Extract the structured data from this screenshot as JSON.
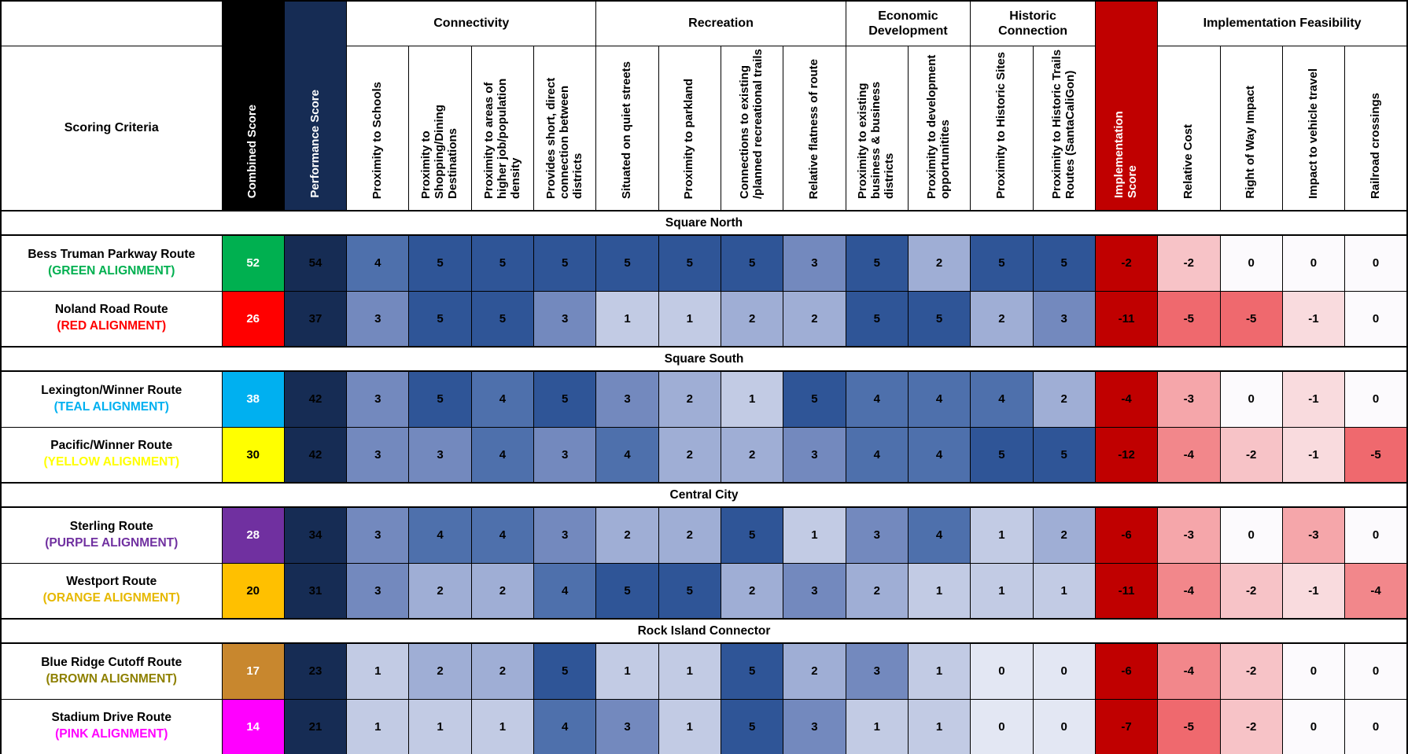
{
  "chart_data": {
    "type": "table",
    "title": "Scoring Criteria",
    "corner_label": "Scoring Criteria",
    "combined_header": "Combined Score",
    "performance_header": "Performance Score",
    "implementation_header": "Implementation Score",
    "groups": [
      {
        "label": "Connectivity",
        "span": 4
      },
      {
        "label": "Recreation",
        "span": 4
      },
      {
        "label": "Economic Development",
        "span": 2
      },
      {
        "label": "Historic Connection",
        "span": 2
      },
      {
        "label": "Implementation Feasibility",
        "span": 4
      }
    ],
    "criteria_headers": [
      "Proximity to Schools",
      "Proximity to Shopping/Dining Destinations",
      "Proximity to areas of higher job/population density",
      "Provides short, direct connection between districts",
      "Situated on quiet streets",
      "Proximity to parkland",
      "Connections to existing /planned recreational trails",
      "Relative flatness of route",
      "Proximity to existing business & business districts",
      "Proximity to development opportunitites",
      "Proximity to Historic Sites",
      "Proximity to Historic Trails Routes (SantaCaliGon)"
    ],
    "feasibility_headers": [
      "Relative Cost",
      "Right of Way Impact",
      "Impact to vehicle travel",
      "Railroad crossings"
    ],
    "colors": {
      "combined_header_bg": "#000000",
      "performance_bg": "#162C54",
      "implementation_bg": "#C00000",
      "score_scale": {
        "0": "#E3E7F3",
        "1": "#C2CBE4",
        "2": "#9FAED5",
        "3": "#7389BE",
        "4": "#4E70AC",
        "5": "#2F5597"
      },
      "feasibility_scale": {
        "0": "#FCFAFD",
        "-1": "#F9DBDE",
        "-2": "#F7C3C7",
        "-3": "#F5A6AA",
        "-4": "#F2878B",
        "-5": "#EF696E"
      }
    },
    "sections": [
      {
        "title": "Square North",
        "rows": [
          {
            "name": "Bess Truman Parkway Route",
            "alignment": "(GREEN ALIGNMENT)",
            "label_color": "#00B050",
            "combined": 52,
            "combined_bg": "#00B050",
            "combined_text": "#FFFFFF",
            "performance": 54,
            "scores": [
              4,
              5,
              5,
              5,
              5,
              5,
              5,
              3,
              5,
              2,
              5,
              5
            ],
            "implementation": -2,
            "feasibility": [
              -2,
              0,
              0,
              0
            ]
          },
          {
            "name": "Noland Road Route",
            "alignment": "(RED ALIGNMENT)",
            "label_color": "#FF0000",
            "combined": 26,
            "combined_bg": "#FF0000",
            "combined_text": "#FFFFFF",
            "performance": 37,
            "scores": [
              3,
              5,
              5,
              3,
              1,
              1,
              2,
              2,
              5,
              5,
              2,
              3
            ],
            "implementation": -11,
            "feasibility": [
              -5,
              -5,
              -1,
              0
            ]
          }
        ]
      },
      {
        "title": "Square South",
        "rows": [
          {
            "name": "Lexington/Winner Route",
            "alignment": "(TEAL ALIGNMENT)",
            "label_color": "#00B0F0",
            "combined": 38,
            "combined_bg": "#00B0F0",
            "combined_text": "#FFFFFF",
            "performance": 42,
            "scores": [
              3,
              5,
              4,
              5,
              3,
              2,
              1,
              5,
              4,
              4,
              4,
              2
            ],
            "implementation": -4,
            "feasibility": [
              -3,
              0,
              -1,
              0
            ]
          },
          {
            "name": "Pacific/Winner Route",
            "alignment": "(YELLOW ALIGNMENT)",
            "label_color": "#FFFF00",
            "combined": 30,
            "combined_bg": "#FFFF00",
            "combined_text": "#000000",
            "performance": 42,
            "scores": [
              3,
              3,
              4,
              3,
              4,
              2,
              2,
              3,
              4,
              4,
              5,
              5
            ],
            "implementation": -12,
            "feasibility": [
              -4,
              -2,
              -1,
              -5
            ]
          }
        ]
      },
      {
        "title": "Central City",
        "rows": [
          {
            "name": "Sterling Route",
            "alignment": "(PURPLE ALIGNMENT)",
            "label_color": "#7030A0",
            "combined": 28,
            "combined_bg": "#7030A0",
            "combined_text": "#FFFFFF",
            "performance": 34,
            "scores": [
              3,
              4,
              4,
              3,
              2,
              2,
              5,
              1,
              3,
              4,
              1,
              2
            ],
            "implementation": -6,
            "feasibility": [
              -3,
              0,
              -3,
              0
            ]
          },
          {
            "name": "Westport Route",
            "alignment": "(ORANGE ALIGNMENT)",
            "label_color": "#E6B800",
            "combined": 20,
            "combined_bg": "#FFC000",
            "combined_text": "#000000",
            "performance": 31,
            "scores": [
              3,
              2,
              2,
              4,
              5,
              5,
              2,
              3,
              2,
              1,
              1,
              1
            ],
            "implementation": -11,
            "feasibility": [
              -4,
              -2,
              -1,
              -4
            ]
          }
        ]
      },
      {
        "title": "Rock Island Connector",
        "rows": [
          {
            "name": "Blue Ridge Cutoff Route",
            "alignment": "(BROWN ALIGNMENT)",
            "label_color": "#8E8000",
            "combined": 17,
            "combined_bg": "#C8872E",
            "combined_text": "#FFFFFF",
            "performance": 23,
            "scores": [
              1,
              2,
              2,
              5,
              1,
              1,
              5,
              2,
              3,
              1,
              0,
              0
            ],
            "implementation": -6,
            "feasibility": [
              -4,
              -2,
              0,
              0
            ]
          },
          {
            "name": "Stadium Drive Route",
            "alignment": "(PINK ALIGNMENT)",
            "label_color": "#FF00FF",
            "combined": 14,
            "combined_bg": "#FF00FF",
            "combined_text": "#FFFFFF",
            "performance": 21,
            "scores": [
              1,
              1,
              1,
              4,
              3,
              1,
              5,
              3,
              1,
              1,
              0,
              0
            ],
            "implementation": -7,
            "feasibility": [
              -5,
              -2,
              0,
              0
            ]
          }
        ]
      }
    ]
  }
}
